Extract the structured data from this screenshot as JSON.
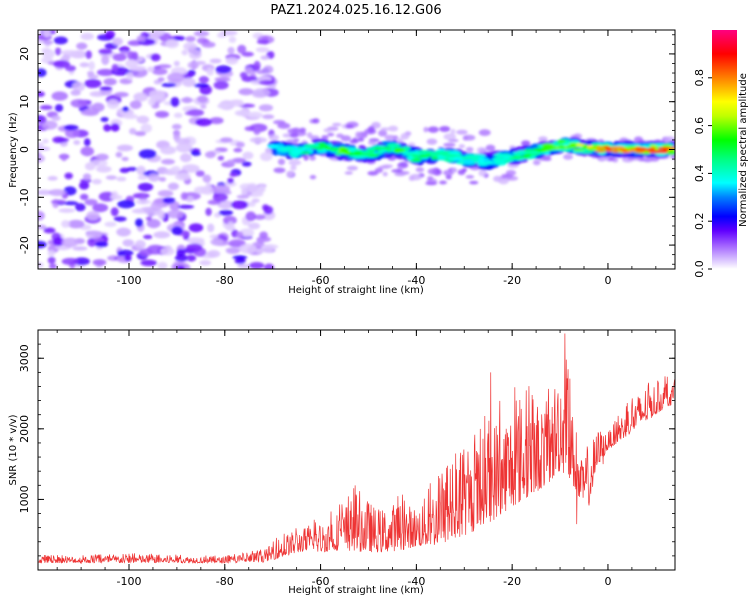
{
  "title": "PAZ1.2024.025.16.12.G06",
  "chart_data": [
    {
      "type": "heatmap",
      "xlabel": "Height of straight line (km)",
      "ylabel": "Frequency (Hz)",
      "xlim": [
        -119,
        14
      ],
      "ylim": [
        -25,
        25
      ],
      "xticks": [
        -100,
        -80,
        -60,
        -40,
        -20,
        0
      ],
      "yticks": [
        -20,
        -10,
        0,
        10,
        20
      ],
      "colorbar": {
        "label": "Normalized spectral amplitude",
        "range": [
          0,
          1
        ],
        "ticks": [
          0.0,
          0.2,
          0.4,
          0.6,
          0.8
        ],
        "colors": [
          "#ffffff",
          "#c8a0ff",
          "#8000ff",
          "#0000ff",
          "#00ffff",
          "#00ff00",
          "#ffff00",
          "#ff8000",
          "#ff0000",
          "#ff0080"
        ]
      },
      "noise_region": {
        "x_from": -119,
        "x_to": -70,
        "freq_from": -25,
        "freq_to": 25
      },
      "signal_track": {
        "x": [
          -70,
          -65,
          -60,
          -55,
          -50,
          -45,
          -40,
          -35,
          -30,
          -25,
          -20,
          -15,
          -10,
          -5,
          0,
          5,
          10,
          14
        ],
        "freq": [
          0.5,
          -0.5,
          0.5,
          -0.5,
          -1,
          0.5,
          -1.5,
          -1,
          -2,
          -2.5,
          -1.5,
          -0.5,
          1,
          0.5,
          0,
          0,
          0,
          0
        ],
        "peak_amplitude": [
          0.3,
          0.35,
          0.45,
          0.55,
          0.4,
          0.5,
          0.45,
          0.4,
          0.35,
          0.3,
          0.4,
          0.45,
          0.6,
          0.65,
          0.8,
          0.75,
          0.85,
          0.8
        ]
      }
    },
    {
      "type": "line",
      "xlabel": "Height of straight line (km)",
      "ylabel": "SNR (10 * v/v)",
      "xlim": [
        -119,
        14
      ],
      "ylim": [
        0,
        3400
      ],
      "xticks": [
        -100,
        -80,
        -60,
        -40,
        -20,
        0
      ],
      "yticks": [
        1000,
        2000,
        3000
      ],
      "series_color": "#ee3333",
      "envelope": {
        "x": [
          -119,
          -110,
          -100,
          -90,
          -80,
          -72,
          -68,
          -64,
          -60,
          -56,
          -52,
          -48,
          -44,
          -40,
          -36,
          -32,
          -28,
          -24,
          -20,
          -16,
          -12,
          -10,
          -8,
          -6,
          -4,
          -2,
          0,
          4,
          8,
          12,
          14
        ],
        "low": [
          100,
          100,
          100,
          100,
          100,
          110,
          180,
          260,
          250,
          280,
          260,
          250,
          270,
          330,
          350,
          420,
          550,
          700,
          900,
          1050,
          1250,
          1400,
          1300,
          1000,
          900,
          1500,
          1700,
          1900,
          2100,
          2300,
          2350
        ],
        "high": [
          220,
          210,
          250,
          220,
          200,
          300,
          550,
          650,
          750,
          950,
          1300,
          950,
          1100,
          1000,
          1350,
          1650,
          1900,
          2400,
          2600,
          2650,
          2600,
          3350,
          2800,
          1600,
          1900,
          2100,
          2000,
          2400,
          2700,
          2750,
          2700
        ]
      },
      "notable_points": {
        "x": [
          -24.5,
          -9,
          -6.5,
          -1
        ],
        "y": [
          2800,
          3350,
          650,
          1500
        ]
      }
    }
  ]
}
